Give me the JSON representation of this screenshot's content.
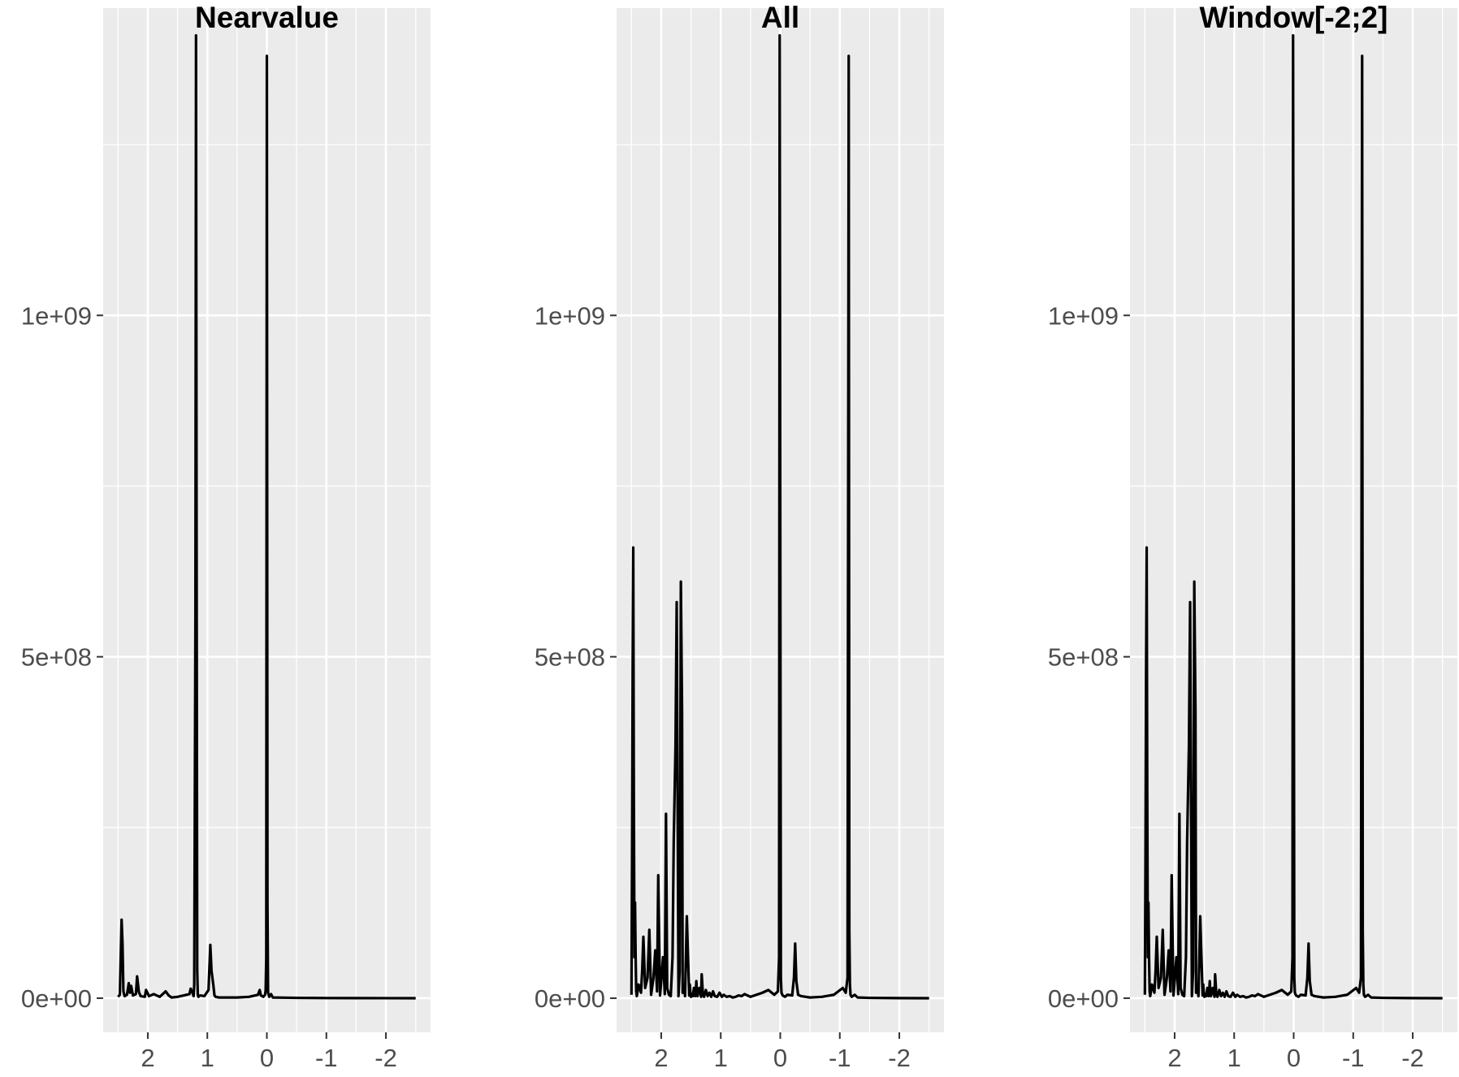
{
  "colors": {
    "panel_background": "#ebebeb",
    "grid_line": "#ffffff",
    "series_line": "#000000",
    "tick_text": "#4d4d4d",
    "title_text": "#000000"
  },
  "chart_data": [
    {
      "type": "line",
      "title": "Nearvalue",
      "xlabel": "",
      "ylabel": "",
      "x_reversed": true,
      "xlim": [
        2.75,
        -2.75
      ],
      "ylim": [
        -50000000,
        1450000000
      ],
      "x_ticks": [
        2,
        1,
        0,
        -1,
        -2
      ],
      "x_tick_labels": [
        "2",
        "1",
        "0",
        "-1",
        "-2"
      ],
      "y_ticks": [
        0,
        500000000,
        1000000000
      ],
      "y_tick_labels": [
        "0e+00",
        "5e+08",
        "1e+09"
      ],
      "grid": true,
      "series": [
        {
          "x": [
            2.5,
            2.47,
            2.455,
            2.44,
            2.425,
            2.41,
            2.39,
            2.35,
            2.32,
            2.3,
            2.28,
            2.25,
            2.2,
            2.18,
            2.15,
            2.12,
            2.05,
            2.03,
            1.98,
            1.9,
            1.8,
            1.7,
            1.65,
            1.6,
            1.5,
            1.3,
            1.28,
            1.25,
            1.23,
            1.22,
            1.2,
            1.19,
            1.18,
            1.17,
            1.16,
            1.15,
            1.14,
            1.12,
            1.05,
            0.98,
            0.95,
            0.93,
            0.9,
            0.88,
            0.86,
            0.8,
            0.7,
            0.5,
            0.3,
            0.15,
            0.12,
            0.1,
            0.06,
            0.03,
            0.02,
            0.01,
            0.0,
            -0.01,
            -0.02,
            -0.04,
            -0.07,
            -0.1,
            -0.5,
            -1.0,
            -1.5,
            -2.0,
            -2.5
          ],
          "y": [
            2000000,
            5000000,
            60000000,
            115000000,
            80000000,
            10000000,
            3000000,
            5000000,
            22000000,
            8000000,
            18000000,
            4000000,
            6000000,
            32000000,
            9000000,
            3000000,
            2000000,
            12000000,
            3000000,
            6000000,
            2000000,
            10000000,
            4000000,
            1000000,
            2000000,
            6000000,
            14000000,
            8000000,
            3000000,
            20000000,
            560000000,
            1410000000,
            650000000,
            40000000,
            5000000,
            2000000,
            3000000,
            4000000,
            3000000,
            12000000,
            78000000,
            40000000,
            20000000,
            4000000,
            2000000,
            1000000,
            1000000,
            1000000,
            2000000,
            5000000,
            12000000,
            4000000,
            2000000,
            5000000,
            12000000,
            60000000,
            1380000000,
            140000000,
            8000000,
            2000000,
            6000000,
            1000000,
            500000,
            200000,
            100000,
            50000,
            0
          ]
        }
      ]
    },
    {
      "type": "line",
      "title": "All",
      "xlabel": "",
      "ylabel": "",
      "x_reversed": true,
      "xlim": [
        2.75,
        -2.75
      ],
      "ylim": [
        -50000000,
        1450000000
      ],
      "x_ticks": [
        2,
        1,
        0,
        -1,
        -2
      ],
      "x_tick_labels": [
        "2",
        "1",
        "0",
        "-1",
        "-2"
      ],
      "y_ticks": [
        0,
        500000000,
        1000000000
      ],
      "y_tick_labels": [
        "0e+00",
        "5e+08",
        "1e+09"
      ],
      "grid": true,
      "series": [
        {
          "x": [
            2.5,
            2.49,
            2.48,
            2.47,
            2.46,
            2.45,
            2.44,
            2.43,
            2.42,
            2.41,
            2.38,
            2.34,
            2.32,
            2.3,
            2.27,
            2.23,
            2.2,
            2.17,
            2.13,
            2.1,
            2.07,
            2.05,
            2.02,
            2.0,
            1.97,
            1.94,
            1.92,
            1.9,
            1.87,
            1.84,
            1.81,
            1.79,
            1.76,
            1.74,
            1.71,
            1.69,
            1.67,
            1.65,
            1.64,
            1.62,
            1.6,
            1.57,
            1.55,
            1.53,
            1.52,
            1.51,
            1.5,
            1.49,
            1.47,
            1.45,
            1.43,
            1.42,
            1.41,
            1.4,
            1.39,
            1.36,
            1.33,
            1.32,
            1.3,
            1.28,
            1.25,
            1.22,
            1.19,
            1.16,
            1.13,
            1.1,
            1.06,
            1.02,
            0.98,
            0.95,
            0.9,
            0.85,
            0.8,
            0.75,
            0.7,
            0.65,
            0.6,
            0.5,
            0.4,
            0.3,
            0.2,
            0.1,
            0.04,
            0.02,
            0.01,
            0.0,
            -0.01,
            -0.02,
            -0.04,
            -0.08,
            -0.12,
            -0.2,
            -0.23,
            -0.25,
            -0.27,
            -0.3,
            -0.35,
            -0.5,
            -0.7,
            -0.9,
            -1.05,
            -1.1,
            -1.13,
            -1.15,
            -1.16,
            -1.17,
            -1.18,
            -1.2,
            -1.25,
            -1.3,
            -1.5,
            -2.0,
            -2.5
          ],
          "y": [
            5000000,
            200000000,
            480000000,
            660000000,
            300000000,
            60000000,
            140000000,
            60000000,
            10000000,
            3000000,
            20000000,
            8000000,
            40000000,
            90000000,
            15000000,
            30000000,
            100000000,
            5000000,
            30000000,
            70000000,
            10000000,
            180000000,
            4000000,
            25000000,
            60000000,
            6000000,
            270000000,
            15000000,
            5000000,
            3000000,
            60000000,
            230000000,
            370000000,
            580000000,
            3000000,
            40000000,
            610000000,
            420000000,
            8000000,
            20000000,
            3000000,
            120000000,
            60000000,
            4000000,
            20000000,
            8000000,
            2000000,
            6000000,
            3000000,
            15000000,
            3000000,
            8000000,
            25000000,
            8000000,
            3000000,
            15000000,
            2000000,
            35000000,
            6000000,
            2000000,
            12000000,
            3000000,
            8000000,
            2000000,
            10000000,
            3000000,
            2000000,
            8000000,
            2000000,
            5000000,
            2000000,
            3000000,
            1000000,
            2000000,
            4000000,
            3000000,
            6000000,
            2000000,
            5000000,
            8000000,
            12000000,
            5000000,
            10000000,
            60000000,
            1410000000,
            700000000,
            30000000,
            8000000,
            4000000,
            2000000,
            5000000,
            4000000,
            30000000,
            80000000,
            25000000,
            5000000,
            3000000,
            1000000,
            2000000,
            5000000,
            15000000,
            8000000,
            30000000,
            1380000000,
            100000000,
            20000000,
            5000000,
            2000000,
            5000000,
            1000000,
            500000,
            100000,
            0
          ]
        }
      ]
    },
    {
      "type": "line",
      "title": "Window[-2;2]",
      "xlabel": "",
      "ylabel": "",
      "x_reversed": true,
      "xlim": [
        2.75,
        -2.75
      ],
      "ylim": [
        -50000000,
        1450000000
      ],
      "x_ticks": [
        2,
        1,
        0,
        -1,
        -2
      ],
      "x_tick_labels": [
        "2",
        "1",
        "0",
        "-1",
        "-2"
      ],
      "y_ticks": [
        0,
        500000000,
        1000000000
      ],
      "y_tick_labels": [
        "0e+00",
        "5e+08",
        "1e+09"
      ],
      "grid": true,
      "series": [
        {
          "x": [
            2.5,
            2.49,
            2.48,
            2.47,
            2.46,
            2.45,
            2.44,
            2.43,
            2.42,
            2.41,
            2.38,
            2.34,
            2.32,
            2.3,
            2.27,
            2.23,
            2.2,
            2.17,
            2.13,
            2.1,
            2.07,
            2.05,
            2.02,
            2.0,
            1.97,
            1.94,
            1.92,
            1.9,
            1.87,
            1.84,
            1.81,
            1.79,
            1.76,
            1.74,
            1.71,
            1.69,
            1.67,
            1.65,
            1.64,
            1.62,
            1.6,
            1.57,
            1.55,
            1.53,
            1.52,
            1.51,
            1.5,
            1.49,
            1.47,
            1.45,
            1.43,
            1.42,
            1.41,
            1.4,
            1.39,
            1.36,
            1.33,
            1.32,
            1.3,
            1.28,
            1.25,
            1.22,
            1.19,
            1.16,
            1.13,
            1.1,
            1.06,
            1.02,
            0.98,
            0.95,
            0.9,
            0.85,
            0.8,
            0.75,
            0.7,
            0.65,
            0.6,
            0.5,
            0.4,
            0.3,
            0.2,
            0.1,
            0.04,
            0.02,
            0.01,
            0.0,
            -0.01,
            -0.02,
            -0.04,
            -0.08,
            -0.12,
            -0.2,
            -0.23,
            -0.25,
            -0.27,
            -0.3,
            -0.35,
            -0.5,
            -0.7,
            -0.9,
            -1.05,
            -1.1,
            -1.13,
            -1.15,
            -1.16,
            -1.17,
            -1.18,
            -1.2,
            -1.25,
            -1.3,
            -1.5,
            -2.0,
            -2.5
          ],
          "y": [
            5000000,
            200000000,
            480000000,
            660000000,
            300000000,
            60000000,
            140000000,
            60000000,
            10000000,
            3000000,
            20000000,
            8000000,
            40000000,
            90000000,
            15000000,
            30000000,
            100000000,
            5000000,
            30000000,
            70000000,
            10000000,
            180000000,
            4000000,
            25000000,
            60000000,
            6000000,
            270000000,
            15000000,
            5000000,
            3000000,
            60000000,
            230000000,
            370000000,
            580000000,
            3000000,
            40000000,
            610000000,
            420000000,
            8000000,
            20000000,
            3000000,
            120000000,
            60000000,
            4000000,
            20000000,
            8000000,
            2000000,
            6000000,
            3000000,
            15000000,
            3000000,
            8000000,
            25000000,
            8000000,
            3000000,
            15000000,
            2000000,
            35000000,
            6000000,
            2000000,
            12000000,
            3000000,
            8000000,
            2000000,
            10000000,
            3000000,
            2000000,
            8000000,
            2000000,
            5000000,
            2000000,
            3000000,
            1000000,
            2000000,
            4000000,
            3000000,
            6000000,
            2000000,
            5000000,
            8000000,
            12000000,
            5000000,
            10000000,
            60000000,
            1410000000,
            700000000,
            30000000,
            8000000,
            4000000,
            2000000,
            5000000,
            4000000,
            30000000,
            80000000,
            25000000,
            5000000,
            3000000,
            1000000,
            2000000,
            5000000,
            15000000,
            8000000,
            30000000,
            1380000000,
            100000000,
            20000000,
            5000000,
            2000000,
            5000000,
            1000000,
            500000,
            100000,
            0
          ]
        }
      ]
    }
  ]
}
